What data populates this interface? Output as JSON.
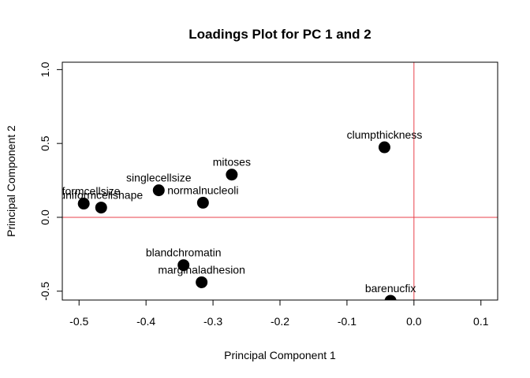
{
  "chart_data": {
    "type": "scatter",
    "title": "Loadings Plot for PC 1 and 2",
    "xlabel": "Principal Component 1",
    "ylabel": "Principal Component 2",
    "xlim": [
      -0.525,
      0.125
    ],
    "ylim": [
      -0.56,
      1.05
    ],
    "xticks": [
      "-0.5",
      "-0.4",
      "-0.3",
      "-0.2",
      "-0.1",
      "0.0",
      "0.1"
    ],
    "xtick_values": [
      -0.5,
      -0.4,
      -0.3,
      -0.2,
      -0.1,
      0.0,
      0.1
    ],
    "yticks": [
      "-0.5",
      "0.0",
      "0.5",
      "1.0"
    ],
    "ytick_values": [
      -0.5,
      0.0,
      0.5,
      1.0
    ],
    "reference_lines": {
      "x": 0,
      "y": 0,
      "color": "#e8414b"
    },
    "point_color": "#000000",
    "grid": false,
    "points": [
      {
        "label": "clumpthickness",
        "x": -0.044,
        "y": 0.474
      },
      {
        "label": "mitoses",
        "x": -0.272,
        "y": 0.289
      },
      {
        "label": "singlecellsize",
        "x": -0.381,
        "y": 0.183
      },
      {
        "label": "normalnucleoli",
        "x": -0.315,
        "y": 0.099
      },
      {
        "label": "uniformcellsize",
        "x": -0.493,
        "y": 0.093
      },
      {
        "label": "uniformcellshape",
        "x": -0.467,
        "y": 0.066
      },
      {
        "label": "blandchromatin",
        "x": -0.344,
        "y": -0.324
      },
      {
        "label": "marginaladhesion",
        "x": -0.317,
        "y": -0.44
      },
      {
        "label": "barenucfix",
        "x": -0.035,
        "y": -0.565
      }
    ]
  }
}
